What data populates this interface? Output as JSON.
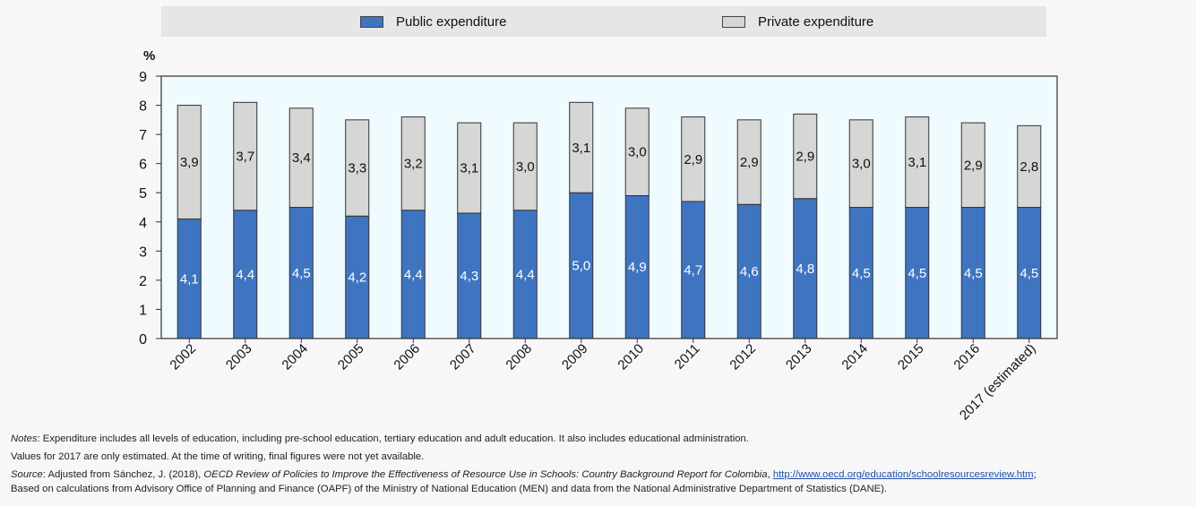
{
  "legend": {
    "public_label": "Public expenditure",
    "private_label": "Private expenditure"
  },
  "colors": {
    "public": "#3f74c0",
    "private": "#d6d6d6",
    "plot_bg": "#f0fbff",
    "bar_stroke": "#333333"
  },
  "chart_data": {
    "type": "bar",
    "stacked": true,
    "ylabel": "%",
    "ylim": [
      0,
      9
    ],
    "yticks": [
      0,
      1,
      2,
      3,
      4,
      5,
      6,
      7,
      8,
      9
    ],
    "grid": false,
    "legend_position": "top",
    "categories": [
      "2002",
      "2003",
      "2004",
      "2005",
      "2006",
      "2007",
      "2008",
      "2009",
      "2010",
      "2011",
      "2012",
      "2013",
      "2014",
      "2015",
      "2016",
      "2017 (estimated)"
    ],
    "series": [
      {
        "name": "Public expenditure",
        "values": [
          4.1,
          4.4,
          4.5,
          4.2,
          4.4,
          4.3,
          4.4,
          5.0,
          4.9,
          4.7,
          4.6,
          4.8,
          4.5,
          4.5,
          4.5,
          4.5
        ],
        "labels": [
          "4,1",
          "4,4",
          "4,5",
          "4,2",
          "4,4",
          "4,3",
          "4,4",
          "5,0",
          "4,9",
          "4,7",
          "4,6",
          "4,8",
          "4,5",
          "4,5",
          "4,5",
          "4,5"
        ]
      },
      {
        "name": "Private expenditure",
        "values": [
          3.9,
          3.7,
          3.4,
          3.3,
          3.2,
          3.1,
          3.0,
          3.1,
          3.0,
          2.9,
          2.9,
          2.9,
          3.0,
          3.1,
          2.9,
          2.8
        ],
        "labels": [
          "3,9",
          "3,7",
          "3,4",
          "3,3",
          "3,2",
          "3,1",
          "3,0",
          "3,1",
          "3,0",
          "2,9",
          "2,9",
          "2,9",
          "3,0",
          "3,1",
          "2,9",
          "2,8"
        ]
      }
    ]
  },
  "notes": {
    "notes_label": "Notes",
    "notes_text": ": Expenditure includes all levels of education, including pre-school education, tertiary education and adult education. It also includes educational administration.",
    "values_note": "Values for 2017 are only estimated. At the time of writing, final figures were not yet available.",
    "source_label": "Source",
    "source_text_1": ": Adjusted from Sánchez, J. (2018), ",
    "source_title": "OECD Review of Policies to Improve the Effectiveness of Resource Use in Schools: Country Background Report for Colombia",
    "source_text_2": ", ",
    "source_url": "http://www.oecd.org/education/schoolresourcesreview.htm",
    "source_text_3": ";",
    "source_line2": "Based on calculations from Advisory Office of Planning and Finance (OAPF) of the Ministry of National Education (MEN) and data from the National Administrative Department of Statistics (DANE)."
  }
}
